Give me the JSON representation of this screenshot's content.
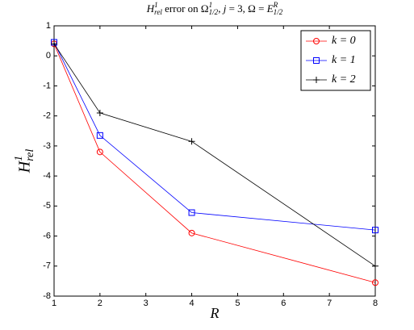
{
  "chart_data": {
    "type": "line",
    "title": [
      "H",
      "1",
      "rel",
      " error on ",
      "Ω",
      "1",
      "1/2",
      ", ",
      "j",
      " = 3, ",
      "Ω",
      " = ",
      "E",
      "R",
      "1/2"
    ],
    "x_label": "R",
    "y_label": [
      "H",
      "1",
      "rel"
    ],
    "x": [
      1,
      2,
      4,
      8
    ],
    "series": [
      {
        "name": "k = 0",
        "color": "#ff0000",
        "marker": "circle",
        "values": [
          0.4,
          -3.2,
          -5.9,
          -7.55
        ]
      },
      {
        "name": "k = 1",
        "color": "#0000ff",
        "marker": "square",
        "values": [
          0.45,
          -2.65,
          -5.22,
          -5.8
        ]
      },
      {
        "name": "k = 2",
        "color": "#000000",
        "marker": "plus",
        "values": [
          0.4,
          -1.9,
          -2.85,
          -7.0
        ]
      }
    ],
    "xlim": [
      1,
      8
    ],
    "xticks": [
      1,
      2,
      3,
      4,
      5,
      6,
      7,
      8
    ],
    "ylim": [
      -8,
      1
    ],
    "yticks": [
      -8,
      -7,
      -6,
      -5,
      -4,
      -3,
      -2,
      -1,
      0,
      1
    ],
    "grid": false,
    "legend": "top-right"
  }
}
